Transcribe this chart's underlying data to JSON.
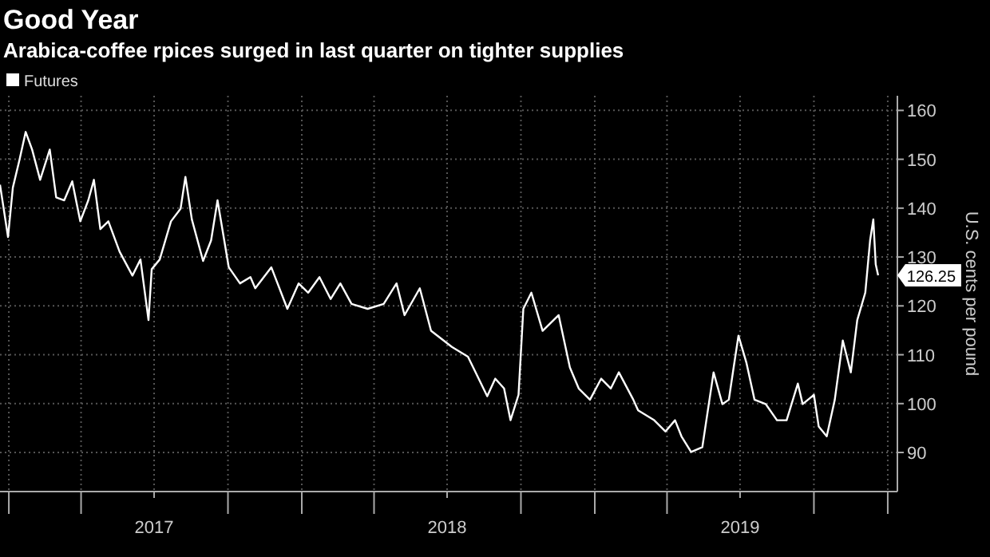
{
  "chart_data": {
    "type": "line",
    "title": "Good Year",
    "subtitle": "Arabica-coffee rpices surged in last quarter on tighter supplies",
    "ylabel": "U.S. cents per pound",
    "x": [
      "2016-12-21",
      "2016-12-31",
      "2017-01-06",
      "2017-01-14",
      "2017-01-22",
      "2017-01-30",
      "2017-02-09",
      "2017-02-21",
      "2017-03-01",
      "2017-03-11",
      "2017-03-21",
      "2017-03-31",
      "2017-04-10",
      "2017-04-17",
      "2017-04-25",
      "2017-05-05",
      "2017-05-19",
      "2017-06-04",
      "2017-06-14",
      "2017-06-24",
      "2017-06-28",
      "2017-07-08",
      "2017-07-22",
      "2017-08-03",
      "2017-08-09",
      "2017-08-17",
      "2017-08-31",
      "2017-09-10",
      "2017-09-18",
      "2017-10-02",
      "2017-10-16",
      "2017-10-29",
      "2017-11-04",
      "2017-11-24",
      "2017-12-14",
      "2017-12-28",
      "2018-01-09",
      "2018-01-23",
      "2018-02-06",
      "2018-02-18",
      "2018-03-04",
      "2018-03-24",
      "2018-04-13",
      "2018-04-29",
      "2018-05-09",
      "2018-05-28",
      "2018-06-11",
      "2018-07-07",
      "2018-07-27",
      "2018-08-20",
      "2018-08-30",
      "2018-09-10",
      "2018-09-18",
      "2018-09-28",
      "2018-10-04",
      "2018-10-14",
      "2018-10-28",
      "2018-11-17",
      "2018-12-01",
      "2018-12-12",
      "2018-12-26",
      "2019-01-09",
      "2019-01-21",
      "2019-01-31",
      "2019-02-18",
      "2019-02-24",
      "2019-03-16",
      "2019-03-30",
      "2019-04-11",
      "2019-04-19",
      "2019-05-01",
      "2019-05-15",
      "2019-05-29",
      "2019-06-09",
      "2019-06-17",
      "2019-06-23",
      "2019-06-29",
      "2019-07-09",
      "2019-07-19",
      "2019-08-02",
      "2019-08-16",
      "2019-08-28",
      "2019-09-11",
      "2019-09-17",
      "2019-10-01",
      "2019-10-07",
      "2019-10-17",
      "2019-10-27",
      "2019-11-06",
      "2019-11-16",
      "2019-11-24",
      "2019-12-04",
      "2019-12-10",
      "2019-12-14",
      "2019-12-17",
      "2019-12-20"
    ],
    "series": [
      {
        "name": "Futures",
        "color": "#ffffff",
        "values": [
          144.8,
          134.1,
          144.2,
          149.7,
          155.6,
          152,
          145.8,
          152,
          142.2,
          141.6,
          145.5,
          137.3,
          141.6,
          145.8,
          135.7,
          137.3,
          131.1,
          126.2,
          129.5,
          117.1,
          127.5,
          129.5,
          137.3,
          139.9,
          146.4,
          137.7,
          129.2,
          133.4,
          141.6,
          127.9,
          124.6,
          125.9,
          123.6,
          127.9,
          119.4,
          124.6,
          122.7,
          125.9,
          121.4,
          124.6,
          120.4,
          119.4,
          120.4,
          124.6,
          118.1,
          123.6,
          114.9,
          111.6,
          109.6,
          101.5,
          105.1,
          103.1,
          96.6,
          101.8,
          119.4,
          122.7,
          114.9,
          118.1,
          107.4,
          103.1,
          100.8,
          105.1,
          103.1,
          106.4,
          100.8,
          98.6,
          96.6,
          94.3,
          96.6,
          93.3,
          90.1,
          91.1,
          106.4,
          99.9,
          100.8,
          107.4,
          113.9,
          108.3,
          100.8,
          99.9,
          96.6,
          96.6,
          104.1,
          99.9,
          101.8,
          95.3,
          93.3,
          100.8,
          112.9,
          106.4,
          117.1,
          122.7,
          133.4,
          137.7,
          128.5,
          126.25
        ]
      }
    ],
    "xlim": [
      "2016-12-21",
      "2020-01-13"
    ],
    "xticks": [
      {
        "value": "2017-01-01",
        "label": null
      },
      {
        "value": "2017-04-01",
        "label": null
      },
      {
        "value": "2017-07-01",
        "label": "2017"
      },
      {
        "value": "2017-10-01",
        "label": null
      },
      {
        "value": "2018-01-01",
        "label": null
      },
      {
        "value": "2018-04-01",
        "label": null
      },
      {
        "value": "2018-07-01",
        "label": "2018"
      },
      {
        "value": "2018-10-01",
        "label": null
      },
      {
        "value": "2019-01-01",
        "label": null
      },
      {
        "value": "2019-04-01",
        "label": null
      },
      {
        "value": "2019-07-01",
        "label": "2019"
      },
      {
        "value": "2019-10-01",
        "label": null
      },
      {
        "value": "2020-01-01",
        "label": null
      }
    ],
    "ylim": [
      82,
      163
    ],
    "yticks": [
      90,
      100,
      110,
      120,
      130,
      140,
      150,
      160
    ],
    "grid": true,
    "legend": "top left",
    "marker": "none",
    "line_style": "solid",
    "annotations": [
      {
        "text": "126.25",
        "x": "2019-12-20",
        "y": 126.25
      }
    ]
  }
}
